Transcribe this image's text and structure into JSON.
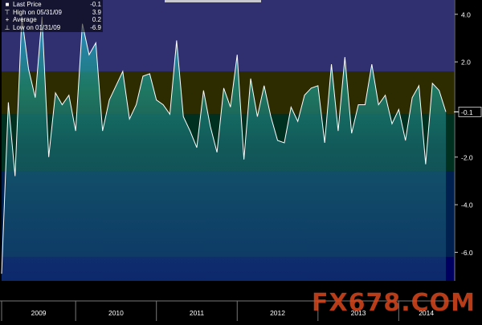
{
  "legend": {
    "last_price_label": "Last Price",
    "last_price_value": "-0.1",
    "high_label": "High on 05/31/09",
    "high_value": "3.9",
    "average_label": "Average",
    "average_value": "0.2",
    "low_label": "Low on 01/31/09",
    "low_value": "-6.9"
  },
  "current_value_label": "-0.1",
  "watermark": "FX678.COM",
  "chart_data": {
    "type": "line",
    "title": "",
    "xlabel": "",
    "ylabel": "",
    "ylim": [
      -7.2,
      4.6
    ],
    "y_ticks": [
      4.0,
      2.0,
      -0.1,
      -2.0,
      -4.0,
      -6.0
    ],
    "y_tick_labels": [
      "4.0",
      "2.0",
      "-0.1",
      "-2.0",
      "-4.0",
      "-6.0"
    ],
    "x_tick_labels": [
      "2009",
      "2010",
      "2011",
      "2012",
      "2013",
      "2014"
    ],
    "bands": [
      {
        "from": 1.6,
        "to": 4.6,
        "color": "#303070"
      },
      {
        "from": -0.2,
        "to": 1.6,
        "color": "#2c2c00"
      },
      {
        "from": -2.6,
        "to": -0.2,
        "color": "#003020"
      },
      {
        "from": -6.2,
        "to": -2.6,
        "color": "#002050"
      },
      {
        "from": -7.2,
        "to": -6.2,
        "color": "#000060"
      }
    ],
    "series": [
      {
        "values": [
          -6.9,
          0.3,
          -2.8,
          3.9,
          1.7,
          0.5,
          3.9,
          -2.0,
          0.7,
          0.2,
          0.6,
          -0.9,
          3.6,
          2.3,
          2.8,
          -0.9,
          0.4,
          1.0,
          1.6,
          -0.4,
          0.2,
          1.4,
          1.5,
          0.4,
          0.2,
          -0.2,
          2.9,
          -0.3,
          -0.9,
          -1.6,
          0.8,
          -0.7,
          -1.8,
          0.9,
          0.1,
          2.3,
          -2.1,
          1.3,
          -0.3,
          1.0,
          -0.3,
          -1.3,
          -1.4,
          0.1,
          -0.5,
          0.6,
          0.9,
          1.0,
          -1.4,
          1.9,
          -0.9,
          2.2,
          -1.0,
          0.2,
          0.2,
          1.9,
          0.2,
          0.6,
          -0.6,
          0.0,
          -1.3,
          0.5,
          1.0,
          -2.3,
          1.1,
          0.8,
          -0.1
        ]
      }
    ]
  }
}
